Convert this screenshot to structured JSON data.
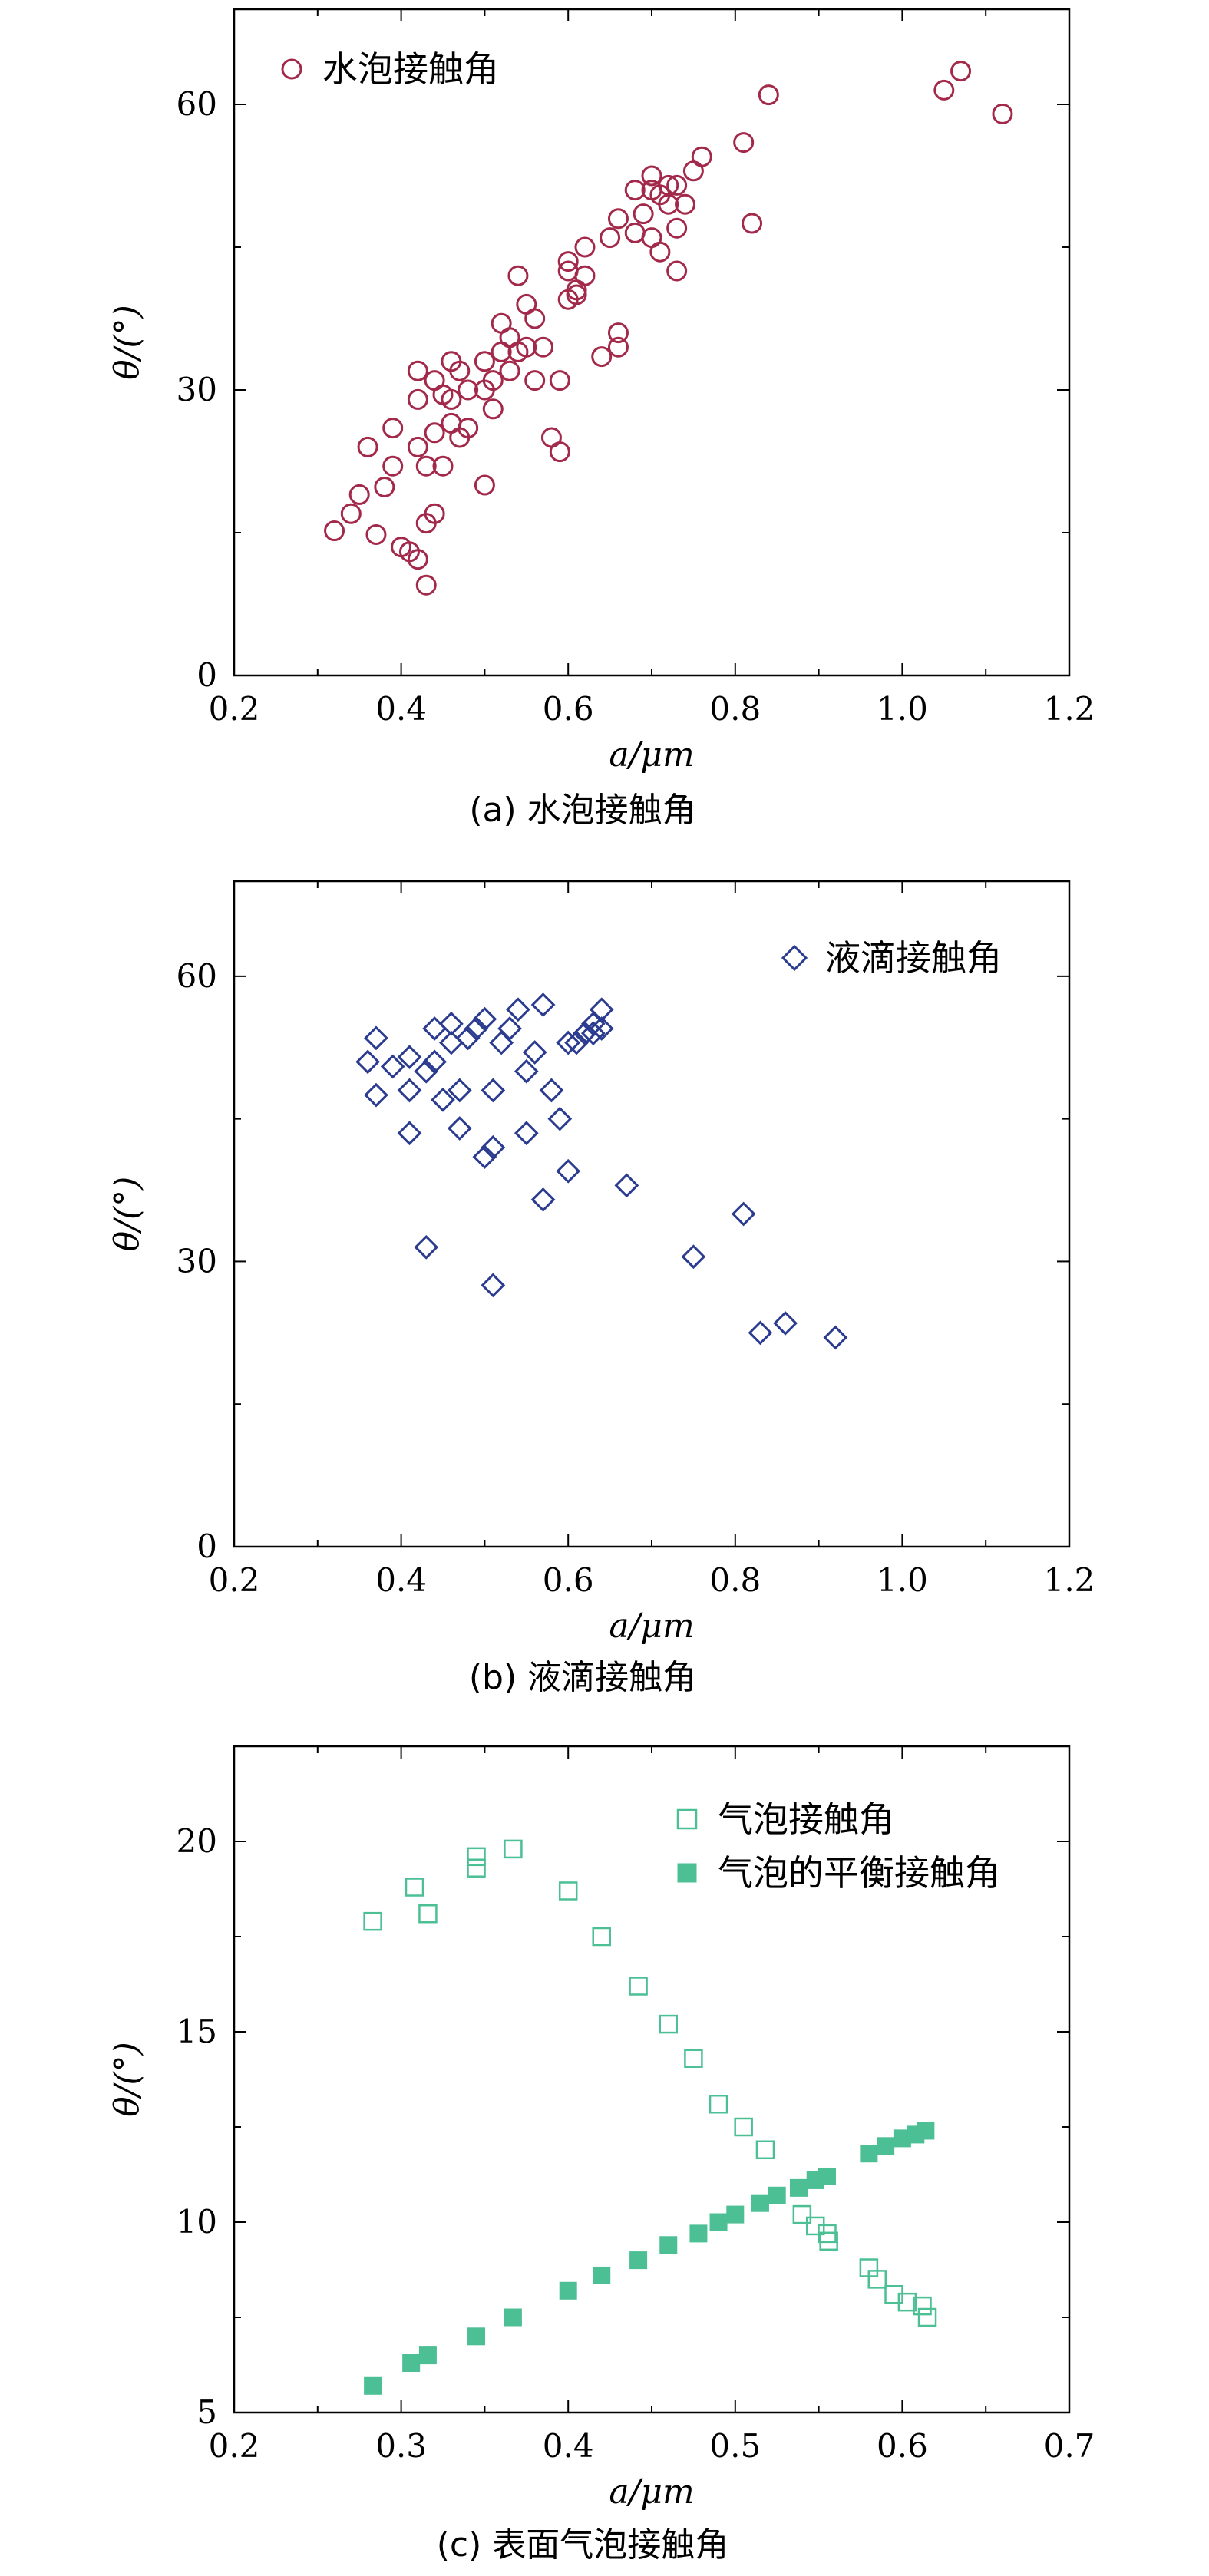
{
  "chart_data": [
    {
      "type": "scatter",
      "caption": "(a) 水泡接触角",
      "xlabel": "a/μm",
      "ylabel": "θ/(°)",
      "xlim": [
        0.2,
        1.2
      ],
      "ylim": [
        0,
        70
      ],
      "xticks": [
        "0.2",
        "0.4",
        "0.6",
        "0.8",
        "1.0",
        "1.2"
      ],
      "yticks": [
        "0",
        "30",
        "60"
      ],
      "legend_position": "top-left",
      "series": [
        {
          "name": "水泡接触角",
          "marker": "circle-open",
          "color": "#a3294a",
          "points": [
            [
              0.32,
              15.2
            ],
            [
              0.34,
              17.0
            ],
            [
              0.35,
              19.0
            ],
            [
              0.36,
              24.0
            ],
            [
              0.37,
              14.8
            ],
            [
              0.38,
              19.8
            ],
            [
              0.39,
              26.0
            ],
            [
              0.39,
              22.0
            ],
            [
              0.4,
              13.5
            ],
            [
              0.41,
              13.0
            ],
            [
              0.42,
              12.2
            ],
            [
              0.42,
              24.0
            ],
            [
              0.42,
              29.0
            ],
            [
              0.43,
              16.0
            ],
            [
              0.43,
              9.5
            ],
            [
              0.43,
              22.0
            ],
            [
              0.44,
              17.0
            ],
            [
              0.44,
              25.5
            ],
            [
              0.44,
              31.0
            ],
            [
              0.45,
              29.5
            ],
            [
              0.45,
              22.0
            ],
            [
              0.46,
              29.0
            ],
            [
              0.46,
              33.0
            ],
            [
              0.46,
              26.5
            ],
            [
              0.47,
              32.0
            ],
            [
              0.47,
              25.0
            ],
            [
              0.48,
              26.0
            ],
            [
              0.48,
              30.0
            ],
            [
              0.42,
              32.0
            ],
            [
              0.5,
              33.0
            ],
            [
              0.5,
              30.0
            ],
            [
              0.5,
              20.0
            ],
            [
              0.51,
              28.0
            ],
            [
              0.51,
              31.0
            ],
            [
              0.52,
              37.0
            ],
            [
              0.52,
              34.0
            ],
            [
              0.53,
              35.5
            ],
            [
              0.53,
              32.0
            ],
            [
              0.54,
              42.0
            ],
            [
              0.54,
              34.0
            ],
            [
              0.55,
              39.0
            ],
            [
              0.55,
              34.5
            ],
            [
              0.56,
              37.5
            ],
            [
              0.56,
              31.0
            ],
            [
              0.57,
              34.5
            ],
            [
              0.58,
              25.0
            ],
            [
              0.59,
              23.5
            ],
            [
              0.59,
              31.0
            ],
            [
              0.6,
              39.5
            ],
            [
              0.6,
              42.5
            ],
            [
              0.6,
              43.5
            ],
            [
              0.61,
              40.5
            ],
            [
              0.61,
              40.0
            ],
            [
              0.62,
              45.0
            ],
            [
              0.62,
              42.0
            ],
            [
              0.64,
              33.5
            ],
            [
              0.65,
              46.0
            ],
            [
              0.66,
              48.0
            ],
            [
              0.66,
              34.5
            ],
            [
              0.66,
              36.0
            ],
            [
              0.68,
              51.0
            ],
            [
              0.68,
              46.5
            ],
            [
              0.69,
              48.5
            ],
            [
              0.7,
              52.5
            ],
            [
              0.7,
              46.0
            ],
            [
              0.7,
              51.0
            ],
            [
              0.71,
              44.5
            ],
            [
              0.71,
              50.5
            ],
            [
              0.72,
              51.5
            ],
            [
              0.72,
              49.5
            ],
            [
              0.73,
              47.0
            ],
            [
              0.73,
              42.5
            ],
            [
              0.73,
              51.5
            ],
            [
              0.74,
              49.5
            ],
            [
              0.75,
              53.0
            ],
            [
              0.76,
              54.5
            ],
            [
              0.81,
              56.0
            ],
            [
              0.82,
              47.5
            ],
            [
              0.84,
              61.0
            ],
            [
              1.05,
              61.5
            ],
            [
              1.07,
              63.5
            ],
            [
              1.12,
              59.0
            ]
          ]
        }
      ]
    },
    {
      "type": "scatter",
      "caption": "(b) 液滴接触角",
      "xlabel": "a/μm",
      "ylabel": "θ/(°)",
      "xlim": [
        0.2,
        1.2
      ],
      "ylim": [
        0,
        70
      ],
      "xticks": [
        "0.2",
        "0.4",
        "0.6",
        "0.8",
        "1.0",
        "1.2"
      ],
      "yticks": [
        "0",
        "30",
        "60"
      ],
      "legend_position": "top-right",
      "series": [
        {
          "name": "液滴接触角",
          "marker": "diamond-open",
          "color": "#2b3b8f",
          "points": [
            [
              0.36,
              51.0
            ],
            [
              0.37,
              53.5
            ],
            [
              0.37,
              47.5
            ],
            [
              0.39,
              50.5
            ],
            [
              0.41,
              51.5
            ],
            [
              0.41,
              48.0
            ],
            [
              0.41,
              43.5
            ],
            [
              0.43,
              31.5
            ],
            [
              0.43,
              50.0
            ],
            [
              0.44,
              54.5
            ],
            [
              0.44,
              51.0
            ],
            [
              0.45,
              47.0
            ],
            [
              0.46,
              55.0
            ],
            [
              0.46,
              53.0
            ],
            [
              0.47,
              48.0
            ],
            [
              0.47,
              44.0
            ],
            [
              0.48,
              53.5
            ],
            [
              0.49,
              54.5
            ],
            [
              0.5,
              41.0
            ],
            [
              0.5,
              55.5
            ],
            [
              0.51,
              48.0
            ],
            [
              0.51,
              42.0
            ],
            [
              0.51,
              27.5
            ],
            [
              0.52,
              53.0
            ],
            [
              0.53,
              54.5
            ],
            [
              0.54,
              56.5
            ],
            [
              0.55,
              50.0
            ],
            [
              0.55,
              43.5
            ],
            [
              0.56,
              52.0
            ],
            [
              0.57,
              57.0
            ],
            [
              0.57,
              36.5
            ],
            [
              0.58,
              48.0
            ],
            [
              0.59,
              45.0
            ],
            [
              0.6,
              39.5
            ],
            [
              0.6,
              53.0
            ],
            [
              0.61,
              53.0
            ],
            [
              0.62,
              54.0
            ],
            [
              0.63,
              55.0
            ],
            [
              0.63,
              54.0
            ],
            [
              0.64,
              56.5
            ],
            [
              0.64,
              54.5
            ],
            [
              0.67,
              38.0
            ],
            [
              0.75,
              30.5
            ],
            [
              0.81,
              35.0
            ],
            [
              0.83,
              22.5
            ],
            [
              0.86,
              23.5
            ],
            [
              0.92,
              22.0
            ]
          ]
        }
      ]
    },
    {
      "type": "scatter",
      "caption": "(c) 表面气泡接触角",
      "xlabel": "a/μm",
      "ylabel": "θ/(°)",
      "xlim": [
        0.2,
        0.7
      ],
      "ylim": [
        5,
        22.5
      ],
      "xticks": [
        "0.2",
        "0.3",
        "0.4",
        "0.5",
        "0.6",
        "0.7"
      ],
      "yticks": [
        "5",
        "10",
        "15",
        "20"
      ],
      "legend_position": "top-right",
      "series": [
        {
          "name": "气泡接触角",
          "marker": "square-open",
          "color": "#4cbf95",
          "points": [
            [
              0.283,
              17.9
            ],
            [
              0.308,
              18.8
            ],
            [
              0.316,
              18.1
            ],
            [
              0.345,
              19.6
            ],
            [
              0.345,
              19.3
            ],
            [
              0.367,
              19.8
            ],
            [
              0.4,
              18.7
            ],
            [
              0.42,
              17.5
            ],
            [
              0.442,
              16.2
            ],
            [
              0.46,
              15.2
            ],
            [
              0.475,
              14.3
            ],
            [
              0.49,
              13.1
            ],
            [
              0.505,
              12.5
            ],
            [
              0.518,
              11.9
            ],
            [
              0.54,
              10.2
            ],
            [
              0.548,
              9.9
            ],
            [
              0.555,
              9.7
            ],
            [
              0.556,
              9.5
            ],
            [
              0.58,
              8.8
            ],
            [
              0.585,
              8.5
            ],
            [
              0.595,
              8.1
            ],
            [
              0.603,
              7.9
            ],
            [
              0.612,
              7.8
            ],
            [
              0.615,
              7.5
            ]
          ]
        },
        {
          "name": "气泡的平衡接触角",
          "marker": "square-filled",
          "color": "#4cbf95",
          "points": [
            [
              0.283,
              5.7
            ],
            [
              0.306,
              6.3
            ],
            [
              0.316,
              6.5
            ],
            [
              0.345,
              7.0
            ],
            [
              0.367,
              7.5
            ],
            [
              0.4,
              8.2
            ],
            [
              0.42,
              8.6
            ],
            [
              0.442,
              9.0
            ],
            [
              0.46,
              9.4
            ],
            [
              0.478,
              9.7
            ],
            [
              0.49,
              10.0
            ],
            [
              0.5,
              10.2
            ],
            [
              0.515,
              10.5
            ],
            [
              0.525,
              10.7
            ],
            [
              0.538,
              10.9
            ],
            [
              0.548,
              11.1
            ],
            [
              0.555,
              11.2
            ],
            [
              0.58,
              11.8
            ],
            [
              0.59,
              12.0
            ],
            [
              0.6,
              12.2
            ],
            [
              0.608,
              12.3
            ],
            [
              0.614,
              12.4
            ]
          ]
        }
      ]
    }
  ]
}
